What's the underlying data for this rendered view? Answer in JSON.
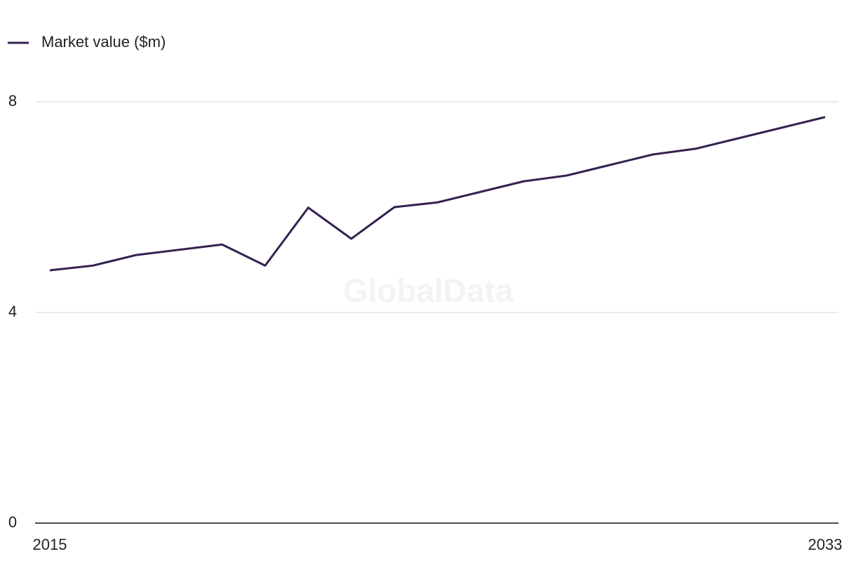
{
  "chart_data": {
    "type": "line",
    "watermark": "GlobalData",
    "x": [
      2015,
      2016,
      2017,
      2018,
      2019,
      2020,
      2021,
      2022,
      2023,
      2024,
      2025,
      2026,
      2027,
      2028,
      2029,
      2030,
      2031,
      2032,
      2033
    ],
    "series": [
      {
        "name": "Market value ($m)",
        "color": "#35224f",
        "values": [
          4.8,
          4.89,
          5.09,
          5.19,
          5.29,
          4.89,
          5.99,
          5.4,
          6.0,
          6.09,
          6.29,
          6.49,
          6.6,
          6.8,
          7.0,
          7.11,
          7.31,
          7.51,
          7.71
        ]
      }
    ],
    "xlim": [
      2015,
      2033
    ],
    "xticks": [
      2015,
      2033
    ],
    "ylim": [
      0,
      8
    ],
    "yticks": [
      0,
      4,
      8
    ],
    "grid": true,
    "legend": "top-left"
  }
}
